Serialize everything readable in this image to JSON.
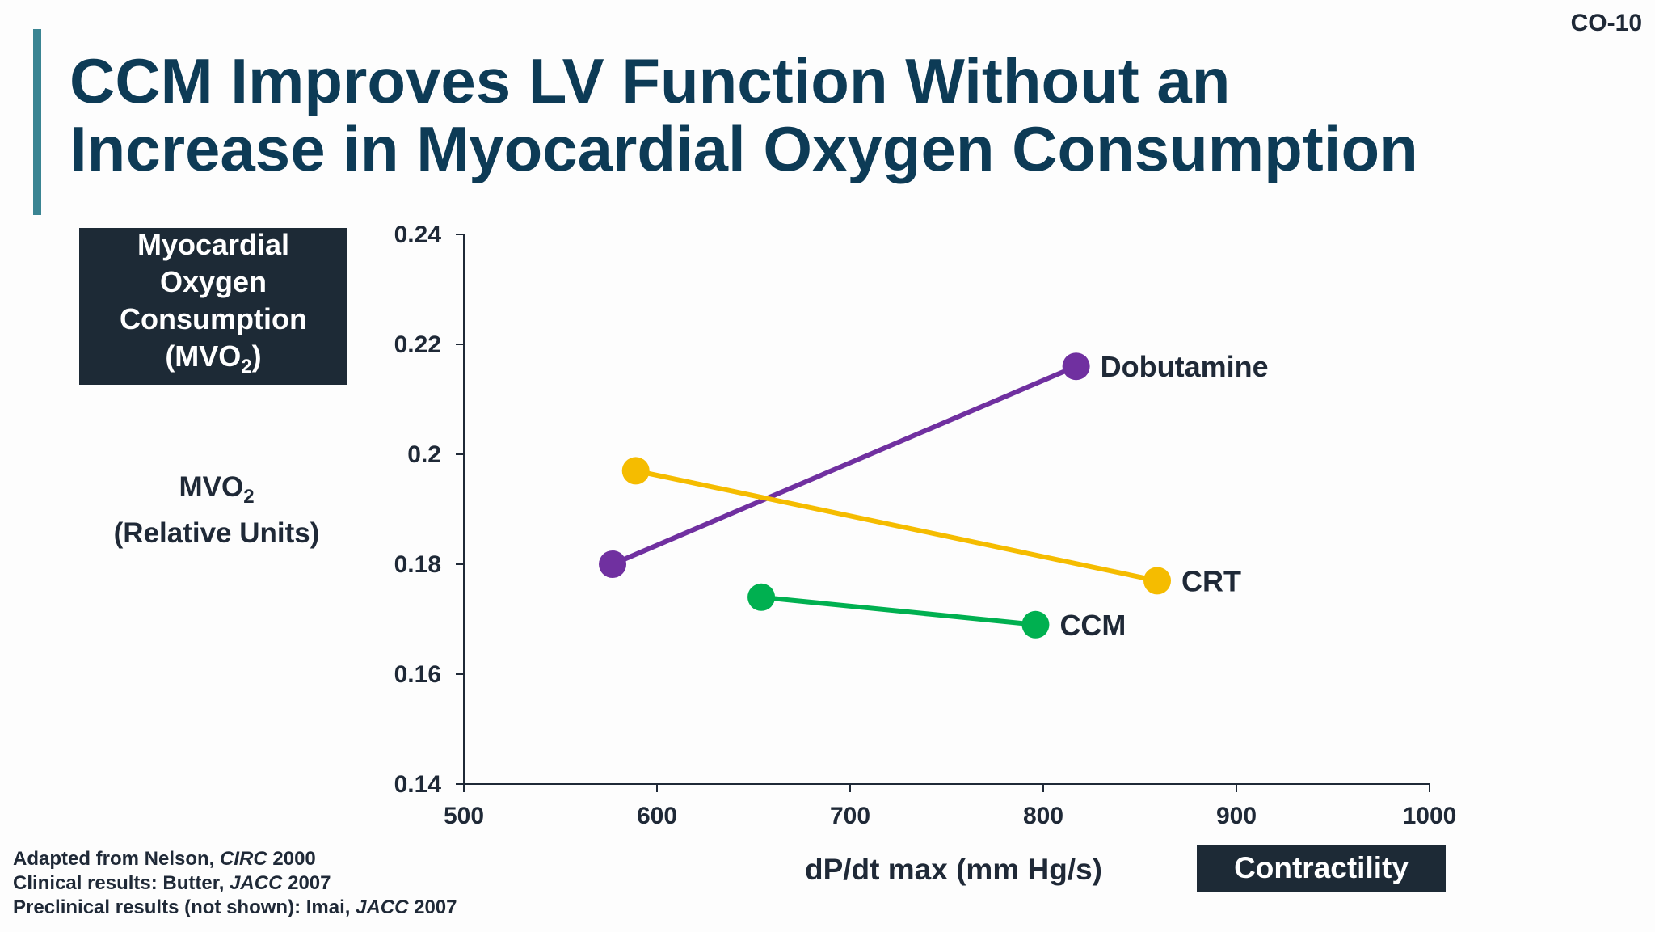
{
  "slide_id": "CO-10",
  "title": {
    "line1": "CCM Improves LV Function Without an",
    "line2": "Increase in Myocardial Oxygen Consumption"
  },
  "mvo_box": {
    "line1": "Myocardial",
    "line2": "Oxygen",
    "line3": "Consumption",
    "line4_prefix": "(MVO",
    "line4_sub": "2",
    "line4_suffix": ")"
  },
  "ylabel": {
    "line1_prefix": "MVO",
    "line1_sub": "2",
    "line2": "(Relative Units)"
  },
  "xlabel": "dP/dt max (mm Hg/s)",
  "contractility_label": "Contractility",
  "references": {
    "line1_prefix": "Adapted from Nelson, ",
    "line1_journal": "CIRC",
    "line1_suffix": " 2000",
    "line2_prefix": "Clinical results: Butter, ",
    "line2_journal": "JACC",
    "line2_suffix": " 2007",
    "line3_prefix": "Preclinical results (not shown): Imai, ",
    "line3_journal": "JACC",
    "line3_suffix": " 2007"
  },
  "colors": {
    "title": "#0d3b56",
    "accent_bar": "#3b8593",
    "dark_box": "#1d2a36",
    "axis": "#1f2937"
  },
  "chart_data": {
    "type": "line",
    "xlim": [
      500,
      1000
    ],
    "ylim": [
      0.14,
      0.24
    ],
    "xticks": [
      500,
      600,
      700,
      800,
      900,
      1000
    ],
    "xtick_labels": [
      "500",
      "600",
      "700",
      "800",
      "900",
      "1000"
    ],
    "yticks": [
      0.14,
      0.16,
      0.18,
      0.2,
      0.22,
      0.24
    ],
    "ytick_labels": [
      "0.14",
      "0.16",
      "0.18",
      "0.2",
      "0.22",
      "0.24"
    ],
    "xlabel": "dP/dt max (mm Hg/s)",
    "ylabel": "MVO2 (Relative Units)",
    "grid": false,
    "series": [
      {
        "name": "Dobutamine",
        "color": "#7030a0",
        "x": [
          577,
          817
        ],
        "y": [
          0.18,
          0.216
        ]
      },
      {
        "name": "CRT",
        "color": "#f5bc00",
        "x": [
          589,
          859
        ],
        "y": [
          0.197,
          0.177
        ]
      },
      {
        "name": "CCM",
        "color": "#00b050",
        "x": [
          654,
          796
        ],
        "y": [
          0.174,
          0.169
        ]
      }
    ]
  }
}
